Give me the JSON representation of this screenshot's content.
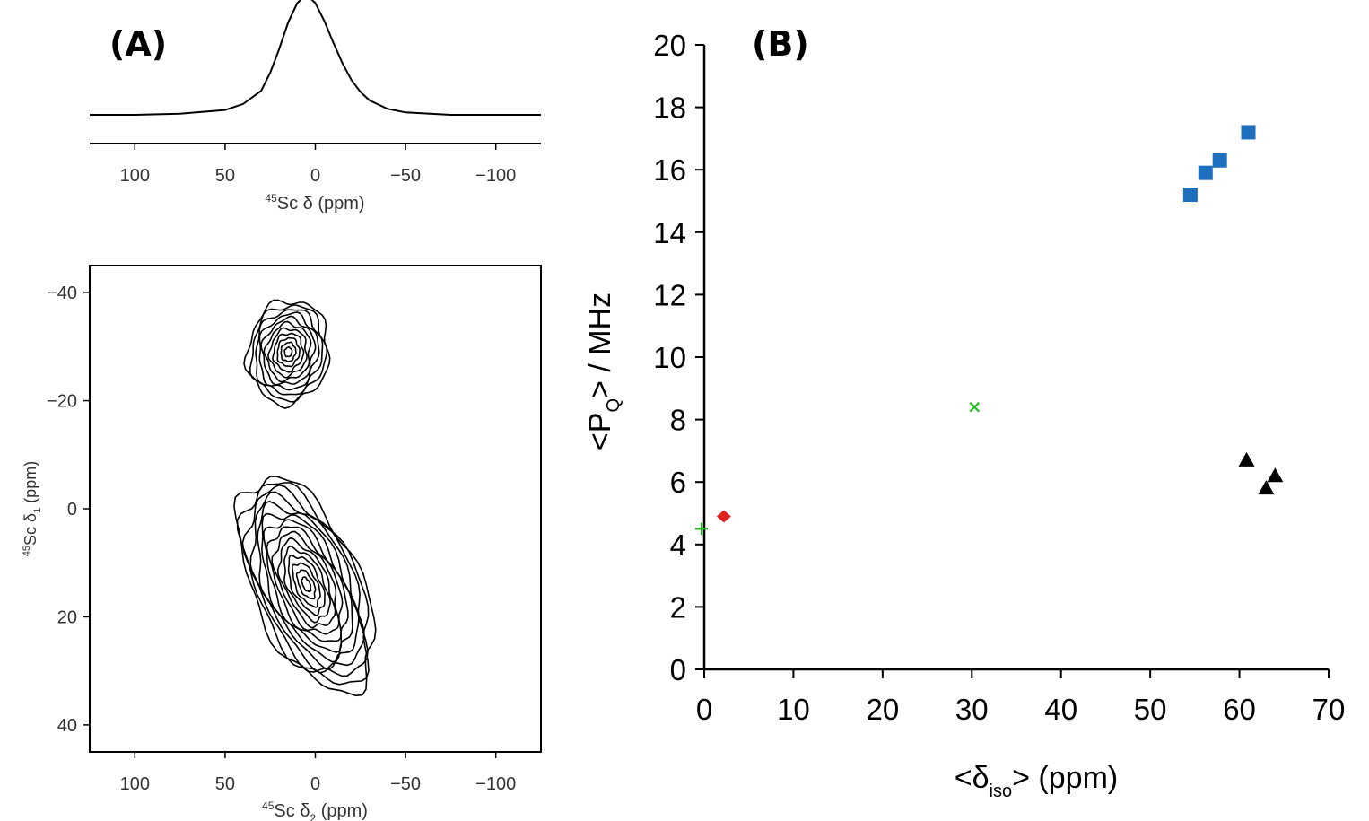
{
  "panel_a": {
    "label": "(A)",
    "spectrum_1d": {
      "xlabel_nucleus": "45",
      "xlabel_text": "Sc δ (ppm)",
      "ticks": [
        "100",
        "50",
        "0",
        "−50",
        "−100"
      ]
    },
    "spectrum_2d": {
      "xlabel_nucleus": "45",
      "xlabel_text": "Sc δ",
      "xlabel_sub": "2",
      "xlabel_unit": " (ppm)",
      "ylabel_nucleus": "45",
      "ylabel_text": "Sc δ",
      "ylabel_sub": "1",
      "ylabel_unit": " (ppm)",
      "xticks": [
        "100",
        "50",
        "0",
        "−50",
        "−100"
      ],
      "yticks": [
        "−40",
        "−20",
        "0",
        "20",
        "40"
      ]
    }
  },
  "panel_b": {
    "label": "(B)"
  },
  "chart_data": [
    {
      "type": "line",
      "x_reversed": true,
      "xlim": [
        125,
        -125
      ],
      "xticks": [
        100,
        50,
        0,
        -50,
        -100
      ],
      "series": [
        {
          "x": [
            125,
            100,
            75,
            50,
            40,
            30,
            25,
            20,
            15,
            10,
            5,
            0,
            -5,
            -10,
            -15,
            -20,
            -25,
            -30,
            -40,
            -50,
            -75,
            -100,
            -125
          ],
          "values": [
            0.0,
            0.0,
            0.01,
            0.04,
            0.09,
            0.2,
            0.35,
            0.55,
            0.77,
            0.93,
            1.0,
            0.93,
            0.78,
            0.6,
            0.43,
            0.29,
            0.19,
            0.12,
            0.05,
            0.02,
            0.0,
            0.0,
            0.0
          ]
        }
      ]
    },
    {
      "type": "heatmap",
      "xlim": [
        125,
        -125
      ],
      "ylim": [
        -45,
        45
      ],
      "xticks": [
        100,
        50,
        0,
        -50,
        -100
      ],
      "yticks": [
        -40,
        -20,
        0,
        20,
        40
      ],
      "peaks": [
        {
          "x": 15,
          "y": -29,
          "contours": 11
        },
        {
          "x": 5,
          "y": 14,
          "contours": 15
        }
      ]
    },
    {
      "type": "scatter",
      "xlabel": "<δiso> (ppm)",
      "ylabel": "<PQ> / MHz",
      "xlim": [
        0,
        70
      ],
      "ylim": [
        0,
        20
      ],
      "xticks": [
        0,
        10,
        20,
        30,
        40,
        50,
        60,
        70
      ],
      "yticks": [
        0,
        2,
        4,
        6,
        8,
        10,
        12,
        14,
        16,
        18,
        20
      ],
      "series": [
        {
          "marker": "square",
          "color": "#1f6fbf",
          "points": [
            [
              54.5,
              15.2
            ],
            [
              56.2,
              15.9
            ],
            [
              57.8,
              16.3
            ],
            [
              61.0,
              17.2
            ]
          ]
        },
        {
          "marker": "triangle",
          "color": "#000000",
          "points": [
            [
              60.8,
              6.7
            ],
            [
              63.0,
              5.8
            ],
            [
              64.0,
              6.2
            ]
          ]
        },
        {
          "marker": "x",
          "color": "#22bb22",
          "points": [
            [
              30.3,
              8.4
            ]
          ]
        },
        {
          "marker": "diamond",
          "color": "#dd2222",
          "points": [
            [
              2.2,
              4.9
            ]
          ]
        },
        {
          "marker": "plus",
          "color": "#22bb22",
          "points": [
            [
              -0.3,
              4.5
            ]
          ]
        }
      ]
    }
  ]
}
